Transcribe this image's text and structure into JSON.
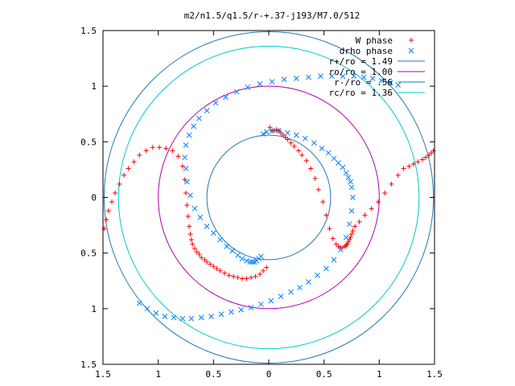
{
  "chart_data": {
    "type": "scatter",
    "title": "m2/n1.5/q1.5/r-+.37-j193/M7.0/512",
    "xlabel": "",
    "ylabel": "",
    "xlim": [
      -1.5,
      1.5
    ],
    "ylim": [
      -1.5,
      1.5
    ],
    "x_ticks": [
      -1.5,
      -1,
      -0.5,
      0,
      0.5,
      1,
      1.5
    ],
    "y_ticks": [
      -1.5,
      -1,
      -0.5,
      0,
      0.5,
      1,
      1.5
    ],
    "x_tick_labels": [
      "1.5",
      "1",
      "0.5",
      "0",
      "0.5",
      "1",
      "1.5"
    ],
    "y_tick_labels": [
      "1.5",
      "1",
      "0.5",
      "0",
      "0.5",
      "1",
      "1.5"
    ],
    "grid": false,
    "legend_position": "top-right",
    "series": [
      {
        "name": "W phase",
        "kind": "points",
        "marker": "plus",
        "color": "#ff0000",
        "x": [
          -1.49,
          -1.47,
          -1.45,
          -1.42,
          -1.39,
          -1.35,
          -1.31,
          -1.27,
          -1.22,
          -1.17,
          -1.11,
          -1.05,
          -0.99,
          -0.93,
          -0.87,
          -0.82,
          -0.78,
          -0.76,
          -0.75,
          -0.74,
          -0.73,
          -0.72,
          -0.71,
          -0.7,
          -0.69,
          -0.67,
          -0.65,
          -0.63,
          -0.61,
          -0.58,
          -0.56,
          -0.53,
          -0.5,
          -0.47,
          -0.44,
          -0.4,
          -0.36,
          -0.32,
          -0.28,
          -0.24,
          -0.2,
          -0.16,
          -0.12,
          -0.08,
          -0.05,
          -0.02,
          0.01,
          0.03,
          0.05,
          0.07,
          0.09,
          0.11,
          0.13,
          0.15,
          0.17,
          0.2,
          0.23,
          0.27,
          0.3,
          0.34,
          0.38,
          0.42,
          0.45,
          0.49,
          0.52,
          0.55,
          0.58,
          0.61,
          0.63,
          0.65,
          0.67,
          0.69,
          0.7,
          0.71,
          0.72,
          0.73,
          0.74,
          0.75,
          0.76,
          0.78,
          0.82,
          0.87,
          0.93,
          0.99,
          1.05,
          1.11,
          1.17,
          1.22,
          1.27,
          1.31,
          1.35,
          1.39,
          1.42,
          1.45,
          1.47,
          1.49
        ],
        "y": [
          -0.28,
          -0.2,
          -0.12,
          -0.04,
          0.04,
          0.12,
          0.2,
          0.26,
          0.32,
          0.38,
          0.42,
          0.45,
          0.45,
          0.44,
          0.42,
          0.37,
          0.28,
          0.16,
          0.04,
          -0.07,
          -0.17,
          -0.26,
          -0.33,
          -0.38,
          -0.42,
          -0.46,
          -0.49,
          -0.51,
          -0.54,
          -0.56,
          -0.58,
          -0.6,
          -0.62,
          -0.64,
          -0.66,
          -0.68,
          -0.7,
          -0.71,
          -0.72,
          -0.73,
          -0.73,
          -0.72,
          -0.71,
          -0.69,
          -0.66,
          -0.63,
          0.63,
          0.6,
          0.6,
          0.61,
          0.6,
          0.58,
          0.56,
          0.54,
          0.52,
          0.49,
          0.46,
          0.42,
          0.38,
          0.33,
          0.26,
          0.17,
          0.07,
          -0.04,
          -0.16,
          -0.28,
          -0.37,
          -0.42,
          -0.44,
          -0.45,
          -0.45,
          -0.44,
          -0.43,
          -0.42,
          -0.4,
          -0.38,
          -0.36,
          -0.33,
          -0.3,
          -0.26,
          -0.22,
          -0.16,
          -0.1,
          -0.04,
          0.04,
          0.12,
          0.2,
          0.26,
          0.28,
          0.3,
          0.32,
          0.34,
          0.36,
          0.38,
          0.4,
          0.42
        ]
      },
      {
        "name": "drho phase",
        "kind": "points",
        "marker": "cross",
        "color": "#0080ff",
        "x": [
          -1.17,
          -1.1,
          -1.02,
          -0.94,
          -0.86,
          -0.78,
          -0.7,
          -0.61,
          -0.52,
          -0.43,
          -0.34,
          -0.25,
          -0.16,
          -0.07,
          0.02,
          0.11,
          0.2,
          0.28,
          0.36,
          0.44,
          0.52,
          0.59,
          0.65,
          0.7,
          0.73,
          0.75,
          0.76,
          0.75,
          0.74,
          0.72,
          0.7,
          0.67,
          0.63,
          0.59,
          0.54,
          0.48,
          0.41,
          0.33,
          0.25,
          0.17,
          0.09,
          0.03,
          -0.02,
          -0.05,
          -0.07,
          -0.09,
          -0.11,
          -0.13,
          -0.15,
          -0.17,
          -0.2,
          -0.24,
          -0.28,
          -0.33,
          -0.38,
          -0.44,
          -0.5,
          -0.56,
          -0.62,
          -0.67,
          -0.71,
          -0.74,
          -0.75,
          -0.76,
          -0.75,
          -0.72,
          -0.68,
          -0.63,
          -0.56,
          -0.48,
          -0.39,
          -0.29,
          -0.19,
          -0.08,
          0.03,
          0.14,
          0.25,
          0.36,
          0.47,
          0.57,
          0.67,
          0.77,
          0.86,
          0.94,
          1.02,
          1.1,
          1.17
        ],
        "y": [
          -0.95,
          -1.0,
          -1.04,
          -1.07,
          -1.08,
          -1.09,
          -1.09,
          -1.08,
          -1.07,
          -1.05,
          -1.03,
          -1.01,
          -0.99,
          -0.96,
          -0.93,
          -0.89,
          -0.85,
          -0.81,
          -0.76,
          -0.7,
          -0.64,
          -0.56,
          -0.47,
          -0.36,
          -0.24,
          -0.12,
          0.0,
          0.09,
          0.14,
          0.18,
          0.22,
          0.27,
          0.31,
          0.35,
          0.4,
          0.44,
          0.49,
          0.53,
          0.56,
          0.58,
          0.6,
          0.6,
          0.59,
          0.57,
          -0.53,
          -0.55,
          -0.57,
          -0.58,
          -0.58,
          -0.58,
          -0.57,
          -0.55,
          -0.52,
          -0.48,
          -0.44,
          -0.38,
          -0.32,
          -0.26,
          -0.18,
          -0.1,
          0.02,
          0.14,
          0.26,
          0.36,
          0.47,
          0.56,
          0.64,
          0.71,
          0.78,
          0.85,
          0.9,
          0.95,
          0.99,
          1.02,
          1.04,
          1.06,
          1.07,
          1.08,
          1.09,
          1.09,
          1.09,
          1.09,
          1.08,
          1.07,
          1.05,
          1.03,
          1.01
        ]
      },
      {
        "name": "r+/ro = 1.49",
        "kind": "circle",
        "radius": 1.49,
        "color": "#1f78b4"
      },
      {
        "name": "ro/ro = 1.00",
        "kind": "circle",
        "radius": 1.0,
        "color": "#b000b0"
      },
      {
        "name": "r-/ro = .56",
        "kind": "circle",
        "radius": 0.56,
        "color": "#1f78b4"
      },
      {
        "name": "rc/ro = 1.36",
        "kind": "circle",
        "radius": 1.36,
        "color": "#00c8c8"
      }
    ]
  }
}
